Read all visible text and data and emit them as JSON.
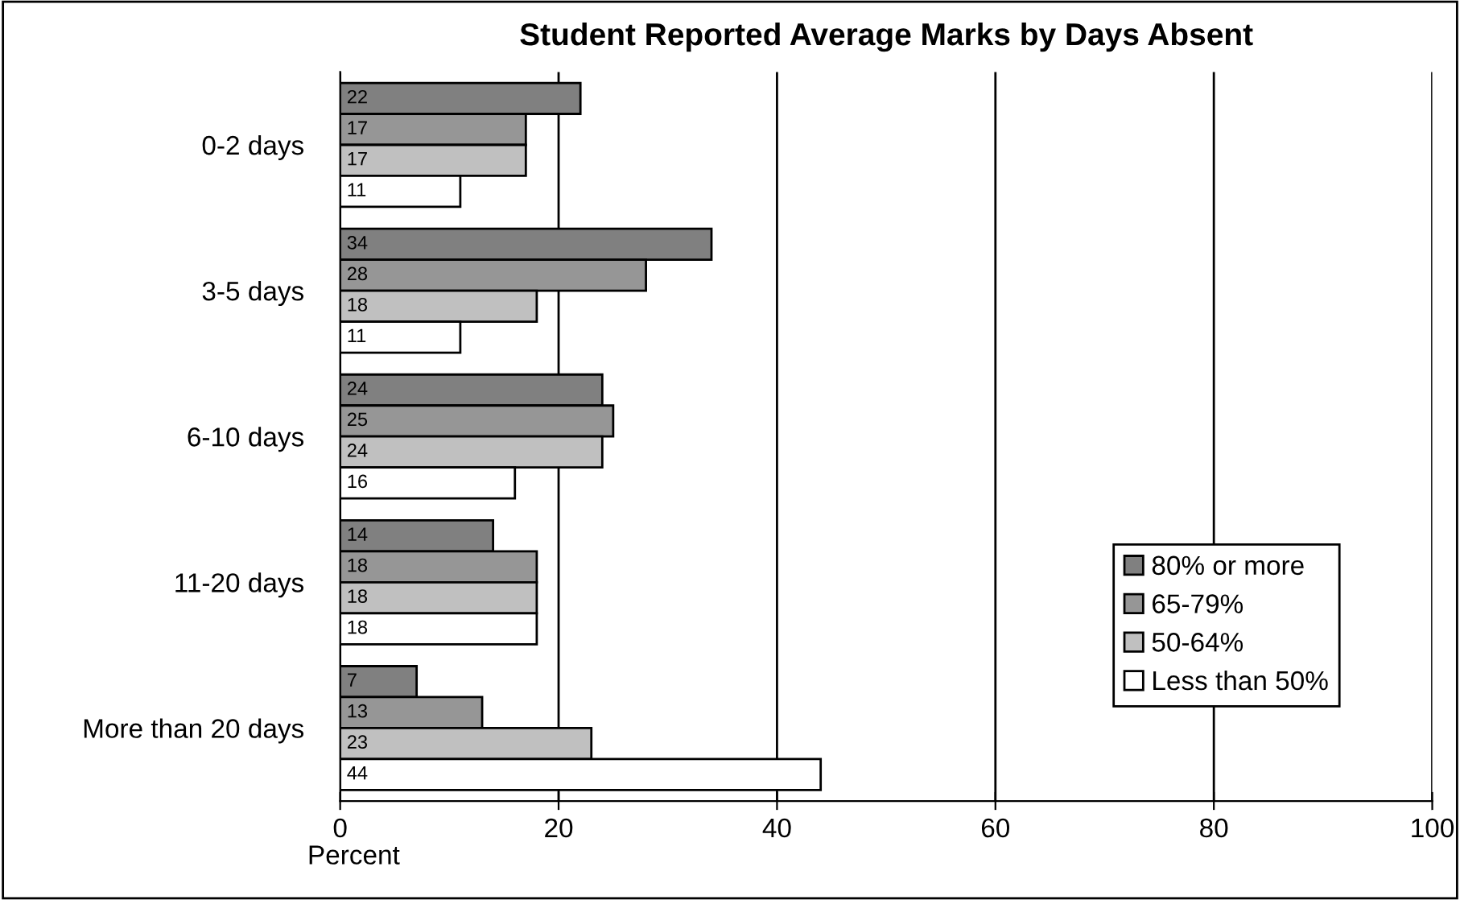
{
  "chart_data": {
    "type": "bar",
    "orientation": "horizontal",
    "title": "Student Reported Average Marks by Days Absent",
    "xlabel": "Percent",
    "categories": [
      "0-2 days",
      "3-5 days",
      "6-10 days",
      "11-20 days",
      "More than 20 days"
    ],
    "series": [
      {
        "name": "80% or more",
        "color": "#808080",
        "values": [
          22,
          34,
          24,
          14,
          7
        ]
      },
      {
        "name": "65-79%",
        "color": "#969696",
        "values": [
          17,
          28,
          25,
          18,
          13
        ]
      },
      {
        "name": "50-64%",
        "color": "#c0c0c0",
        "values": [
          17,
          18,
          24,
          18,
          23
        ]
      },
      {
        "name": "Less than 50%",
        "color": "#ffffff",
        "values": [
          11,
          11,
          16,
          18,
          44
        ]
      }
    ],
    "xlim": [
      0,
      100
    ],
    "xticks": [
      0,
      20,
      40,
      60,
      80,
      100
    ],
    "grid": "x",
    "legend": "bottom right",
    "data_labels": true
  }
}
